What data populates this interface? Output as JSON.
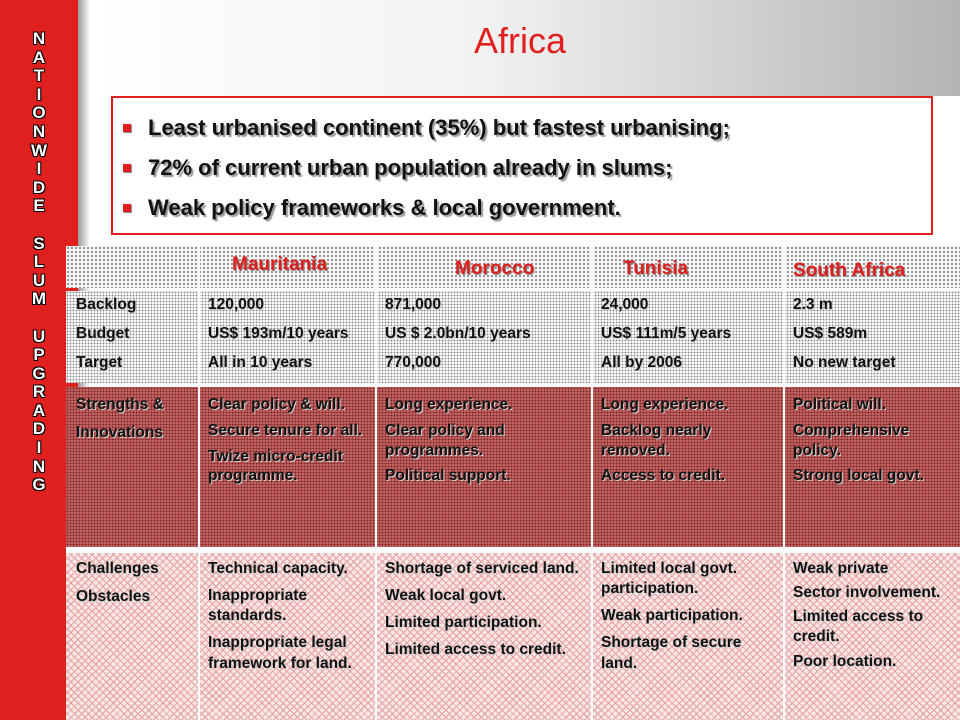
{
  "sidebar": {
    "vertical_title": [
      "N",
      "A",
      "T",
      "I",
      "O",
      "N",
      "W",
      "I",
      "D",
      "E",
      "",
      "S",
      "L",
      "U",
      "M",
      "",
      "U",
      "P",
      "G",
      "R",
      "A",
      "D",
      "I",
      "N",
      "G"
    ]
  },
  "title": "Africa",
  "bullets": [
    "Least urbanised continent (35%) but fastest urbanising;",
    "72% of current urban population already in slums;",
    "Weak policy frameworks & local government."
  ],
  "table": {
    "columns": [
      "",
      "Mauritania",
      "Morocco",
      "Tunisia",
      "South Africa"
    ],
    "backlog": {
      "labels": [
        "Backlog",
        "Budget",
        "Target"
      ],
      "mauritania": [
        "120,000",
        "US$ 193m/10 years",
        "All in 10 years"
      ],
      "morocco": [
        "871,000",
        "US $ 2.0bn/10 years",
        "770,000"
      ],
      "tunisia": [
        "24,000",
        "US$ 111m/5 years",
        "All by 2006"
      ],
      "south_africa": [
        "2.3 m",
        "US$ 589m",
        "No new target"
      ]
    },
    "strengths": {
      "labels": [
        "Strengths &",
        "Innovations"
      ],
      "mauritania": [
        "Clear policy & will.",
        "Secure tenure for all.",
        "Twize micro-credit programme."
      ],
      "morocco": [
        "Long experience.",
        "Clear policy and programmes.",
        "Political support."
      ],
      "tunisia": [
        "Long experience.",
        "Backlog nearly removed.",
        "Access to credit."
      ],
      "south_africa": [
        "Political will.",
        "Comprehensive policy.",
        "Strong local govt."
      ]
    },
    "challenges": {
      "labels": [
        "Challenges",
        "Obstacles"
      ],
      "mauritania": [
        "Technical capacity.",
        "Inappropriate standards.",
        "Inappropriate legal framework for land."
      ],
      "morocco": [
        "Shortage of serviced land.",
        "Weak local govt.",
        "Limited participation.",
        "Limited access to credit."
      ],
      "tunisia": [
        "Limited local govt. participation.",
        "Weak participation.",
        "Shortage of secure land."
      ],
      "south_africa": [
        "Weak private",
        "Sector involvement.",
        "Limited access to credit.",
        "Poor location."
      ]
    }
  },
  "colors": {
    "accent_red": "#e0201f",
    "strengths_row": "#c46161",
    "challenges_row": "#fbe6e6"
  }
}
